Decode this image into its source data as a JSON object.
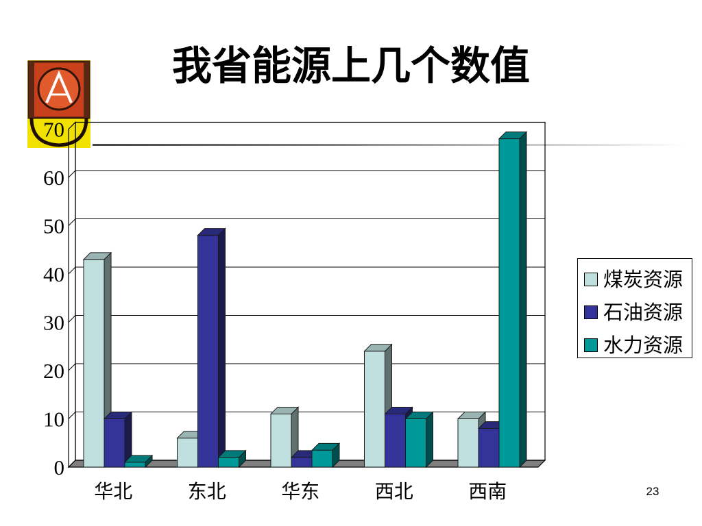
{
  "slide": {
    "title": "我省能源上几个数值",
    "page_number": "23"
  },
  "colors": {
    "background": "#FFFFFF",
    "axis": "#000000",
    "floor": "#808080"
  },
  "chart_data": {
    "type": "bar",
    "three_d": true,
    "categories": [
      "华北",
      "东北",
      "华东",
      "西北",
      "西南"
    ],
    "series": [
      {
        "name": "煤炭资源",
        "values": [
          43,
          6,
          11,
          24,
          10
        ],
        "color": "#C0E0E0"
      },
      {
        "name": "石油资源",
        "values": [
          10,
          48,
          2,
          11,
          8
        ],
        "color": "#333399"
      },
      {
        "name": "水力资源",
        "values": [
          1,
          2,
          3.5,
          10,
          68
        ],
        "color": "#009999"
      }
    ],
    "ylim": [
      0,
      70
    ],
    "yticks": [
      0,
      10,
      20,
      30,
      40,
      50,
      60,
      70
    ],
    "grid": true,
    "legend": "right"
  }
}
